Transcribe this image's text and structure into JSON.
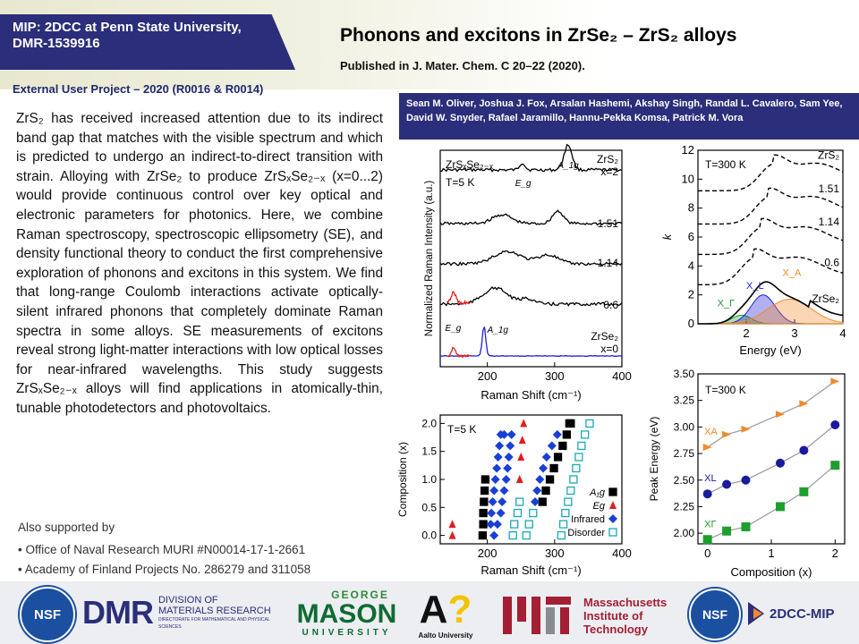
{
  "header": {
    "banner_line1": "MIP: 2DCC at Penn State University,",
    "banner_line2": "DMR-1539916",
    "external_project": "External User Project – 2020 (R0016 & R0014)",
    "title": "Phonons and excitons in ZrSe₂ – ZrS₂ alloys",
    "published": "Published in J. Mater. Chem. C 20–22 (2020)."
  },
  "authors": "Sean M. Oliver, Joshua J. Fox, Arsalan Hashemi, Akshay Singh, Randal L. Cavalero, Sam Yee, David W. Snyder, Rafael Jaramillo, Hannu-Pekka Komsa, Patrick M. Vora",
  "abstract": "ZrS₂ has received increased attention due to its indirect band gap that matches with the visible spectrum and which is predicted to undergo an indirect-to-direct transition with strain. Alloying with ZrSe₂ to produce ZrSₓSe₂₋ₓ (x=0...2) would provide continuous control over key optical and electronic parameters for photonics. Here, we combine Raman spectroscopy, spectroscopic ellipsometry (SE), and density functional theory to conduct the first comprehensive exploration of phonons and excitons in this system. We find that long-range Coulomb interactions activate optically-silent infrared phonons that completely dominate Raman spectra in some alloys. SE measurements of excitons reveal strong light-matter interactions with low optical losses for near-infrared wavelengths. This study suggests ZrSₓSe₂₋ₓ alloys will find applications in atomically-thin, tunable photodetectors and photovoltaics.",
  "support": {
    "heading": "Also supported by",
    "items": [
      "Office of Naval Research MURI #N00014-17-1-2661",
      "Academy of Finland Projects No. 286279 and 311058"
    ]
  },
  "logos": {
    "nsf": "NSF",
    "dmr_big": "DMR",
    "dmr_l1": "DIVISION OF",
    "dmr_l2": "MATERIALS RESEARCH",
    "dmr_l3": "DIRECTORATE FOR MATHEMATICAL AND PHYSICAL SCIENCES",
    "mason_top": "GEORGE",
    "mason_big": "MASON",
    "mason_bottom": "UNIVERSITY",
    "aalto": "Aalto University",
    "mit_l1": "Massachusetts",
    "mit_l2": "Institute of",
    "mit_l3": "Technology",
    "nsf2": "NSF",
    "mip": "2DCC-MIP"
  },
  "colors": {
    "navy": "#2b2e7a",
    "blue": "#1f1fd6",
    "red": "#e01e1e",
    "cyan": "#1aa9b5",
    "orange": "#f08a2a",
    "green": "#1e9e2e",
    "navy_marker": "#1a1a9e"
  },
  "chart_data": [
    {
      "type": "line",
      "title": "",
      "xlabel": "Raman Shift (cm⁻¹)",
      "ylabel": "Normalized Raman Intensity (a.u.)",
      "xlim": [
        130,
        400
      ],
      "xticks": [
        200,
        300,
        400
      ],
      "annotations": [
        "ZrSₓSe₂₋ₓ",
        "T=5 K",
        "E_g",
        "A_1g",
        "E_g",
        "A_1g"
      ],
      "series": [
        {
          "name": "ZrS₂ x=2",
          "label1": "ZrS₂",
          "label2": "x=2"
        },
        {
          "name": "1.51",
          "label1": "1.51"
        },
        {
          "name": "1.14",
          "label1": "1.14"
        },
        {
          "name": "0.6",
          "label1": "0.6"
        },
        {
          "name": "ZrSe₂ x=0",
          "label1": "ZrSe₂",
          "label2": "x=0"
        }
      ]
    },
    {
      "type": "line",
      "title": "",
      "xlabel": "Energy (eV)",
      "ylabel": "k",
      "xlim": [
        1.0,
        4.0
      ],
      "ylim": [
        0,
        12
      ],
      "xticks": [
        2,
        3,
        4
      ],
      "yticks": [
        0,
        2,
        4,
        6,
        8,
        10,
        12
      ],
      "annotations": [
        "T=300 K",
        "X_A",
        "X_L",
        "X_Γ"
      ],
      "series": [
        {
          "name": "ZrS₂",
          "label1": "ZrS₂"
        },
        {
          "name": "1.51",
          "label1": "1.51"
        },
        {
          "name": "1.14",
          "label1": "1.14"
        },
        {
          "name": "0.6",
          "label1": "0.6"
        },
        {
          "name": "ZrSe₂",
          "label1": "ZrSe₂"
        }
      ]
    },
    {
      "type": "scatter",
      "title": "",
      "xlabel": "Raman Shift (cm⁻¹)",
      "ylabel": "Composition (x)",
      "xlim": [
        130,
        400
      ],
      "ylim": [
        -0.15,
        2.15
      ],
      "xticks": [
        200,
        300,
        400
      ],
      "yticks": [
        0.0,
        0.5,
        1.0,
        1.5,
        2.0
      ],
      "annotations": [
        "T=5 K"
      ],
      "series": [
        {
          "name": "A_1g",
          "points": [
            [
              193,
              0.0
            ],
            [
              194,
              0.2
            ],
            [
              194,
              0.4
            ],
            [
              195,
              0.6
            ],
            [
              196,
              0.8
            ],
            [
              197,
              1.0
            ],
            [
              282,
              0.6
            ],
            [
              287,
              0.8
            ],
            [
              293,
              1.0
            ],
            [
              299,
              1.2
            ],
            [
              305,
              1.4
            ],
            [
              312,
              1.6
            ],
            [
              318,
              1.8
            ],
            [
              324,
              2.0
            ],
            [
              322,
              2.0
            ]
          ]
        },
        {
          "name": "E_g",
          "points": [
            [
              148,
              0.0
            ],
            [
              148,
              0.2
            ],
            [
              248,
              1.0
            ],
            [
              250,
              1.4
            ],
            [
              252,
              1.7
            ],
            [
              254,
              2.0
            ]
          ]
        },
        {
          "name": "Infrared",
          "points": [
            [
              205,
              0.2
            ],
            [
              206,
              0.4
            ],
            [
              208,
              0.6
            ],
            [
              210,
              0.8
            ],
            [
              212,
              1.0
            ],
            [
              214,
              1.2
            ],
            [
              216,
              1.4
            ],
            [
              218,
              1.6
            ],
            [
              220,
              1.8
            ],
            [
              225,
              1.8
            ],
            [
              210,
              0.0
            ],
            [
              215,
              0.2
            ],
            [
              220,
              0.4
            ],
            [
              222,
              0.6
            ],
            [
              225,
              0.8
            ],
            [
              228,
              1.0
            ],
            [
              230,
              1.2
            ],
            [
              232,
              1.4
            ],
            [
              234,
              1.6
            ],
            [
              236,
              1.8
            ],
            [
              271,
              0.6
            ],
            [
              274,
              0.8
            ],
            [
              278,
              1.0
            ],
            [
              283,
              1.2
            ],
            [
              288,
              1.4
            ],
            [
              296,
              1.6
            ],
            [
              304,
              1.8
            ]
          ]
        },
        {
          "name": "Disorder",
          "points": [
            [
              238,
              0.0
            ],
            [
              240,
              0.2
            ],
            [
              245,
              0.4
            ],
            [
              248,
              0.6
            ],
            [
              258,
              0.0
            ],
            [
              262,
              0.2
            ],
            [
              268,
              0.4
            ],
            [
              310,
              0.0
            ],
            [
              313,
              0.2
            ],
            [
              316,
              0.4
            ],
            [
              320,
              0.6
            ],
            [
              324,
              0.8
            ],
            [
              328,
              1.0
            ],
            [
              332,
              1.2
            ],
            [
              336,
              1.4
            ],
            [
              340,
              1.6
            ],
            [
              345,
              1.8
            ],
            [
              352,
              2.0
            ]
          ]
        }
      ]
    },
    {
      "type": "scatter",
      "title": "",
      "xlabel": "Composition (x)",
      "ylabel": "Peak Energy (eV)",
      "xlim": [
        -0.15,
        2.15
      ],
      "ylim": [
        1.9,
        3.5
      ],
      "xticks": [
        0,
        1,
        2
      ],
      "yticks": [
        2.0,
        2.25,
        2.5,
        2.75,
        3.0,
        3.25,
        3.5
      ],
      "annotations": [
        "T=300 K"
      ],
      "series": [
        {
          "name": "X_A",
          "x": [
            0.0,
            0.3,
            0.6,
            1.14,
            1.51,
            2.0
          ],
          "values": [
            2.81,
            2.93,
            2.98,
            3.12,
            3.22,
            3.43
          ]
        },
        {
          "name": "X_L",
          "x": [
            0.0,
            0.3,
            0.6,
            1.14,
            1.51,
            2.0
          ],
          "values": [
            2.37,
            2.46,
            2.5,
            2.66,
            2.78,
            3.02
          ]
        },
        {
          "name": "X_Γ",
          "x": [
            0.0,
            0.3,
            0.6,
            1.14,
            1.51,
            2.0
          ],
          "values": [
            1.94,
            2.02,
            2.06,
            2.25,
            2.39,
            2.64
          ]
        }
      ]
    }
  ]
}
